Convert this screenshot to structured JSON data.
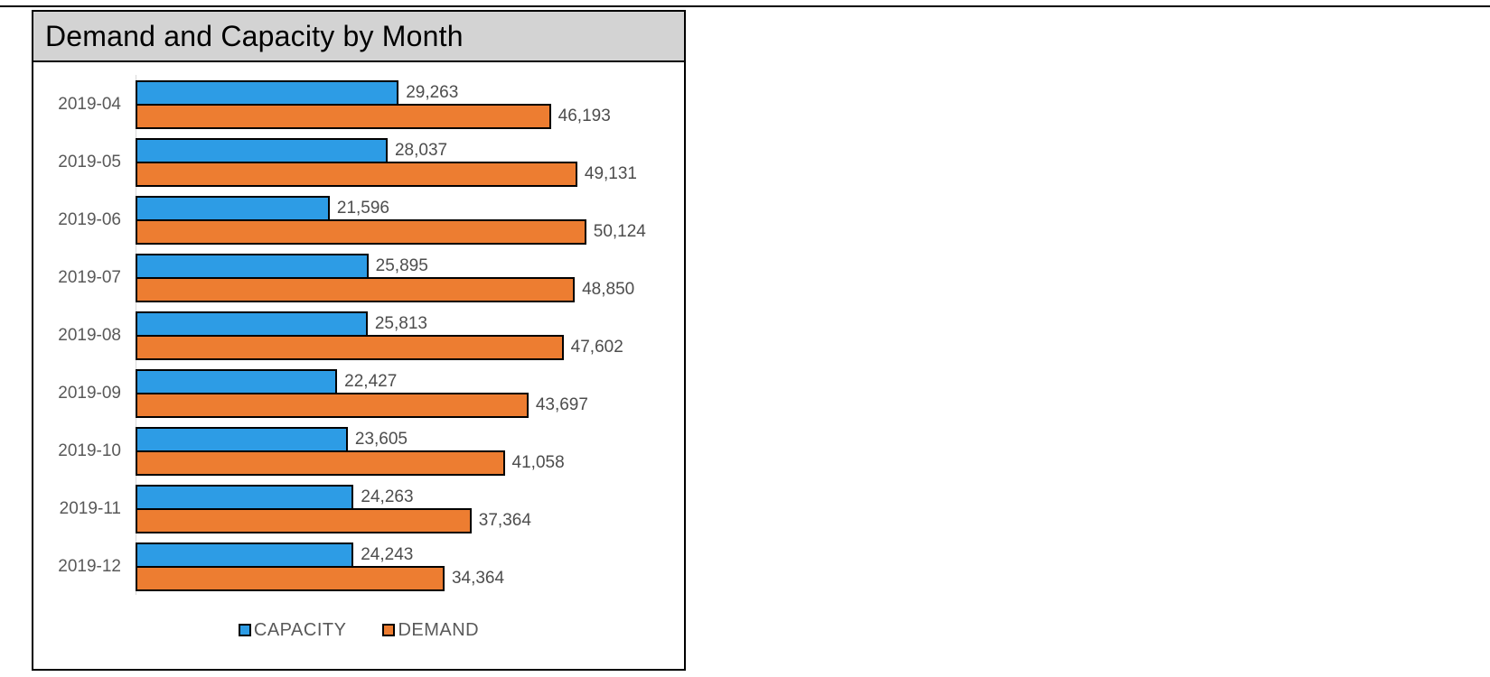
{
  "chart": {
    "title": "Demand and Capacity by Month"
  },
  "chart_data": {
    "type": "bar",
    "orientation": "horizontal",
    "title": "Demand and Capacity by Month",
    "categories": [
      "2019-04",
      "2019-05",
      "2019-06",
      "2019-07",
      "2019-08",
      "2019-09",
      "2019-10",
      "2019-11",
      "2019-12"
    ],
    "series": [
      {
        "name": "CAPACITY",
        "color": "#2D9CE5",
        "values": [
          29263,
          28037,
          21596,
          25895,
          25813,
          22427,
          23605,
          24263,
          24243
        ],
        "labels": [
          "29,263",
          "28,037",
          "21,596",
          "25,895",
          "25,813",
          "22,427",
          "23,605",
          "24,263",
          "24,243"
        ]
      },
      {
        "name": "DEMAND",
        "color": "#ED7D31",
        "values": [
          46193,
          49131,
          50124,
          48850,
          47602,
          43697,
          41058,
          37364,
          34364
        ],
        "labels": [
          "46,193",
          "49,131",
          "50,124",
          "48,850",
          "47,602",
          "43,697",
          "41,058",
          "37,364",
          "34,364"
        ]
      }
    ],
    "xlim": [
      0,
      61000
    ],
    "grid": false,
    "axis_ticks_visible": false,
    "legend_position": "bottom",
    "data_labels": "outside-end",
    "bar_border_color": "#000000",
    "title_band_color": "#D3D3D3",
    "category_text_color": "#595959",
    "value_label_color": "#4D4D4D",
    "axis_line_color": "#D9D9D9"
  }
}
